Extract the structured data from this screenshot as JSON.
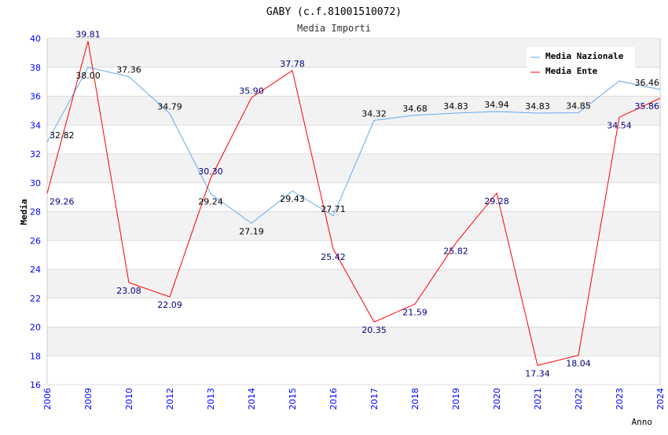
{
  "chart_data": {
    "type": "line",
    "title": "GABY (c.f.81001510072)",
    "subtitle": "Media Importi",
    "xlabel": "Anno",
    "ylabel": "Media",
    "ylim": [
      16,
      40
    ],
    "yticks": [
      "16",
      "18",
      "20",
      "22",
      "24",
      "26",
      "28",
      "30",
      "32",
      "34",
      "36",
      "38",
      "40"
    ],
    "categories": [
      "2006",
      "2009",
      "2010",
      "2012",
      "2013",
      "2014",
      "2015",
      "2016",
      "2017",
      "2018",
      "2019",
      "2020",
      "2021",
      "2022",
      "2023",
      "2024"
    ],
    "grid": true,
    "legend_position": "top-right",
    "series": [
      {
        "name": "Media Nazionale",
        "color": "#66aaee",
        "values": [
          32.82,
          38.0,
          37.36,
          34.79,
          29.24,
          27.19,
          29.43,
          27.71,
          34.32,
          34.68,
          34.83,
          34.94,
          34.83,
          34.85,
          37.05,
          36.46
        ],
        "labels": [
          "32.82",
          "38.00",
          "37.36",
          "34.79",
          "29.24",
          "27.19",
          "29.43",
          "27.71",
          "34.32",
          "34.68",
          "34.83",
          "34.94",
          "34.83",
          "34.85",
          "",
          "36.46"
        ],
        "label_color": "#000000"
      },
      {
        "name": "Media Ente",
        "color": "#ff0000",
        "values": [
          29.26,
          39.81,
          23.08,
          22.09,
          30.3,
          35.9,
          37.78,
          25.42,
          20.35,
          21.59,
          25.82,
          29.28,
          17.34,
          18.04,
          34.54,
          35.86
        ],
        "labels": [
          "29.26",
          "39.81",
          "23.08",
          "22.09",
          "30.30",
          "35.90",
          "37.78",
          "25.42",
          "20.35",
          "21.59",
          "25.82",
          "29.28",
          "17.34",
          "18.04",
          "34.54",
          "35.86"
        ],
        "label_color": "#000080"
      }
    ]
  }
}
